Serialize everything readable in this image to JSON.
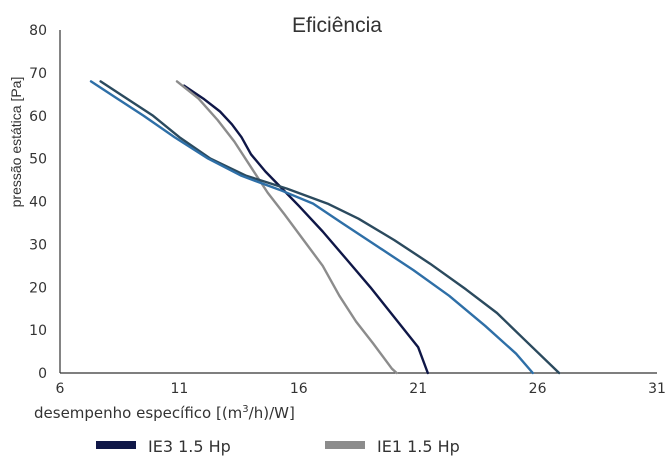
{
  "chart_data": {
    "type": "line",
    "title": "Eficiência",
    "xlabel_main": "desempenho específico [(m",
    "xlabel_sup": "3",
    "xlabel_end": "/h)/W]",
    "ylabel": "pressão estática [Pa]",
    "xlim": [
      6,
      31
    ],
    "ylim": [
      0,
      80
    ],
    "x_ticks": [
      "6",
      "11",
      "16",
      "21",
      "26",
      "31"
    ],
    "y_ticks": [
      "0",
      "10",
      "20",
      "30",
      "40",
      "50",
      "60",
      "70",
      "80"
    ],
    "x_tick_values": [
      6,
      11,
      16,
      21,
      26,
      31
    ],
    "y_tick_values": [
      0,
      10,
      20,
      30,
      40,
      50,
      60,
      70,
      80
    ],
    "grid": false,
    "legend_position": "bottom",
    "series": [
      {
        "name": "IE3 1.5 Hp",
        "color": "#0f1747",
        "in_legend": true,
        "points": [
          [
            11.2,
            67
          ],
          [
            12.0,
            64
          ],
          [
            12.7,
            61
          ],
          [
            13.2,
            58
          ],
          [
            13.6,
            55
          ],
          [
            14.0,
            51
          ],
          [
            14.6,
            47
          ],
          [
            15.3,
            43
          ],
          [
            16.0,
            39
          ],
          [
            17.0,
            33
          ],
          [
            18.0,
            26.5
          ],
          [
            19.0,
            20
          ],
          [
            20.0,
            13
          ],
          [
            21.0,
            6
          ],
          [
            21.4,
            0
          ]
        ]
      },
      {
        "name": "IE1 1.5 Hp",
        "color": "#8c8c8c",
        "in_legend": true,
        "points": [
          [
            10.9,
            68
          ],
          [
            11.8,
            64
          ],
          [
            12.6,
            59
          ],
          [
            13.3,
            54
          ],
          [
            14.0,
            48
          ],
          [
            14.7,
            42
          ],
          [
            15.4,
            37
          ],
          [
            16.2,
            31
          ],
          [
            17.0,
            25
          ],
          [
            17.7,
            18
          ],
          [
            18.4,
            12
          ],
          [
            19.1,
            7
          ],
          [
            19.9,
            1
          ],
          [
            20.1,
            0
          ]
        ]
      },
      {
        "name": "",
        "color": "#2b4a5e",
        "in_legend": false,
        "points": [
          [
            7.7,
            68
          ],
          [
            8.8,
            64
          ],
          [
            9.9,
            60
          ],
          [
            11.0,
            55
          ],
          [
            12.3,
            50
          ],
          [
            13.8,
            46
          ],
          [
            15.5,
            43
          ],
          [
            17.2,
            39.5
          ],
          [
            18.5,
            36
          ],
          [
            20.0,
            31
          ],
          [
            21.5,
            25.5
          ],
          [
            23.0,
            19.5
          ],
          [
            24.3,
            14
          ],
          [
            25.5,
            7.5
          ],
          [
            26.9,
            0
          ]
        ]
      },
      {
        "name": "",
        "color": "#2e6fa7",
        "in_legend": false,
        "points": [
          [
            7.3,
            68
          ],
          [
            8.4,
            64
          ],
          [
            9.5,
            60
          ],
          [
            10.8,
            55
          ],
          [
            12.2,
            50
          ],
          [
            13.6,
            46
          ],
          [
            15.3,
            42.5
          ],
          [
            16.6,
            39.5
          ],
          [
            17.8,
            35
          ],
          [
            19.3,
            29.5
          ],
          [
            20.8,
            24
          ],
          [
            22.3,
            18
          ],
          [
            23.8,
            11
          ],
          [
            25.1,
            4.5
          ],
          [
            25.8,
            0
          ]
        ]
      }
    ]
  }
}
